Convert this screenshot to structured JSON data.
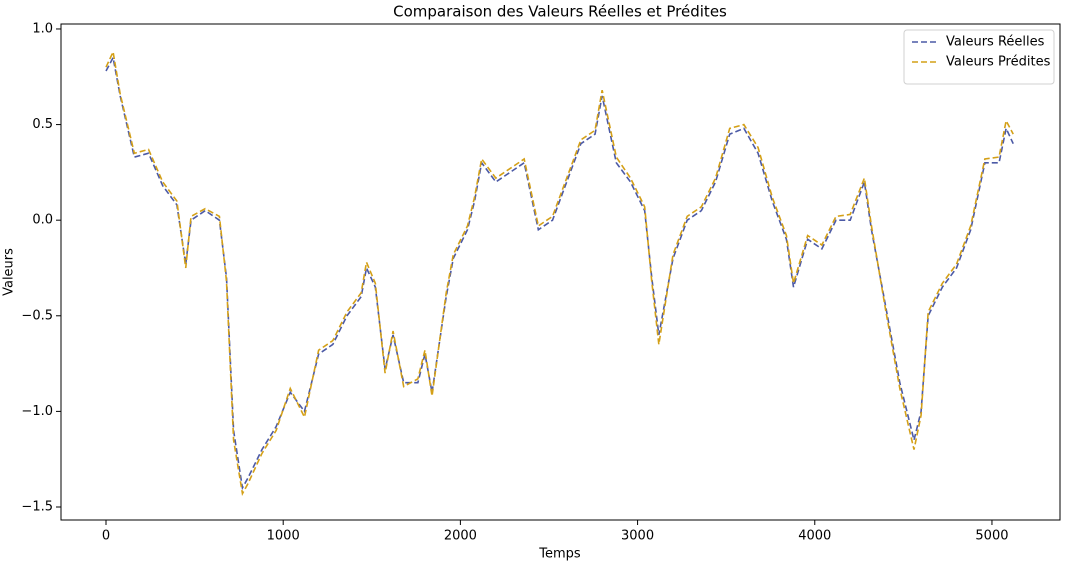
{
  "chart_data": {
    "type": "line",
    "title": "Comparaison des Valeurs Réelles et Prédites",
    "xlabel": "Temps",
    "ylabel": "Valeurs",
    "x": [
      0,
      40,
      80,
      160,
      240,
      320,
      400,
      450,
      480,
      560,
      640,
      680,
      720,
      770,
      800,
      880,
      960,
      1040,
      1120,
      1200,
      1280,
      1360,
      1440,
      1470,
      1520,
      1575,
      1620,
      1680,
      1760,
      1800,
      1840,
      1920,
      1960,
      2040,
      2080,
      2120,
      2200,
      2280,
      2360,
      2440,
      2520,
      2600,
      2680,
      2760,
      2800,
      2880,
      2960,
      3040,
      3080,
      3120,
      3200,
      3280,
      3360,
      3440,
      3520,
      3600,
      3680,
      3760,
      3840,
      3880,
      3960,
      4040,
      4120,
      4200,
      4280,
      4320,
      4400,
      4480,
      4560,
      4600,
      4640,
      4720,
      4800,
      4880,
      4960,
      5040,
      5080,
      5120
    ],
    "series": [
      {
        "name": "Valeurs Réelles",
        "color": "#4c5aa6",
        "values": [
          0.78,
          0.85,
          0.65,
          0.33,
          0.35,
          0.18,
          0.08,
          -0.23,
          0.0,
          0.05,
          0.0,
          -0.3,
          -1.1,
          -1.4,
          -1.35,
          -1.2,
          -1.08,
          -0.9,
          -1.0,
          -0.7,
          -0.65,
          -0.5,
          -0.4,
          -0.25,
          -0.35,
          -0.78,
          -0.6,
          -0.85,
          -0.85,
          -0.7,
          -0.9,
          -0.4,
          -0.2,
          -0.05,
          0.1,
          0.3,
          0.2,
          0.25,
          0.3,
          -0.05,
          0.0,
          0.2,
          0.4,
          0.45,
          0.65,
          0.3,
          0.2,
          0.05,
          -0.3,
          -0.6,
          -0.2,
          0.0,
          0.05,
          0.2,
          0.45,
          0.48,
          0.35,
          0.1,
          -0.1,
          -0.35,
          -0.1,
          -0.15,
          0.0,
          0.0,
          0.2,
          -0.05,
          -0.45,
          -0.85,
          -1.15,
          -1.0,
          -0.5,
          -0.35,
          -0.25,
          -0.05,
          0.3,
          0.3,
          0.48,
          0.4
        ]
      },
      {
        "name": "Valeurs Prédites",
        "color": "#d4a017",
        "values": [
          0.8,
          0.88,
          0.66,
          0.35,
          0.37,
          0.2,
          0.1,
          -0.25,
          0.02,
          0.06,
          0.02,
          -0.32,
          -1.15,
          -1.43,
          -1.38,
          -1.22,
          -1.1,
          -0.88,
          -1.03,
          -0.68,
          -0.63,
          -0.48,
          -0.38,
          -0.22,
          -0.33,
          -0.8,
          -0.58,
          -0.87,
          -0.83,
          -0.68,
          -0.92,
          -0.38,
          -0.18,
          -0.03,
          0.12,
          0.32,
          0.22,
          0.27,
          0.32,
          -0.03,
          0.02,
          0.22,
          0.42,
          0.47,
          0.68,
          0.33,
          0.22,
          0.07,
          -0.32,
          -0.65,
          -0.18,
          0.02,
          0.07,
          0.22,
          0.48,
          0.5,
          0.38,
          0.12,
          -0.08,
          -0.33,
          -0.08,
          -0.13,
          0.02,
          0.03,
          0.22,
          -0.03,
          -0.47,
          -0.88,
          -1.2,
          -1.02,
          -0.48,
          -0.33,
          -0.23,
          -0.03,
          0.32,
          0.33,
          0.52,
          0.45
        ]
      }
    ],
    "xlim": [
      -254,
      5384
    ],
    "xticks": [
      0,
      1000,
      2000,
      3000,
      4000,
      5000
    ],
    "ylim": [
      -1.568,
      1.026
    ],
    "yticks": [
      {
        "value": -1.5,
        "label": "−1.5"
      },
      {
        "value": -1.0,
        "label": "−1.0"
      },
      {
        "value": -0.5,
        "label": "−0.5"
      },
      {
        "value": 0.0,
        "label": "0.0"
      },
      {
        "value": 0.5,
        "label": "0.5"
      },
      {
        "value": 1.0,
        "label": "1.0"
      }
    ],
    "grid": false,
    "legend": "upper right",
    "dashed": true
  }
}
